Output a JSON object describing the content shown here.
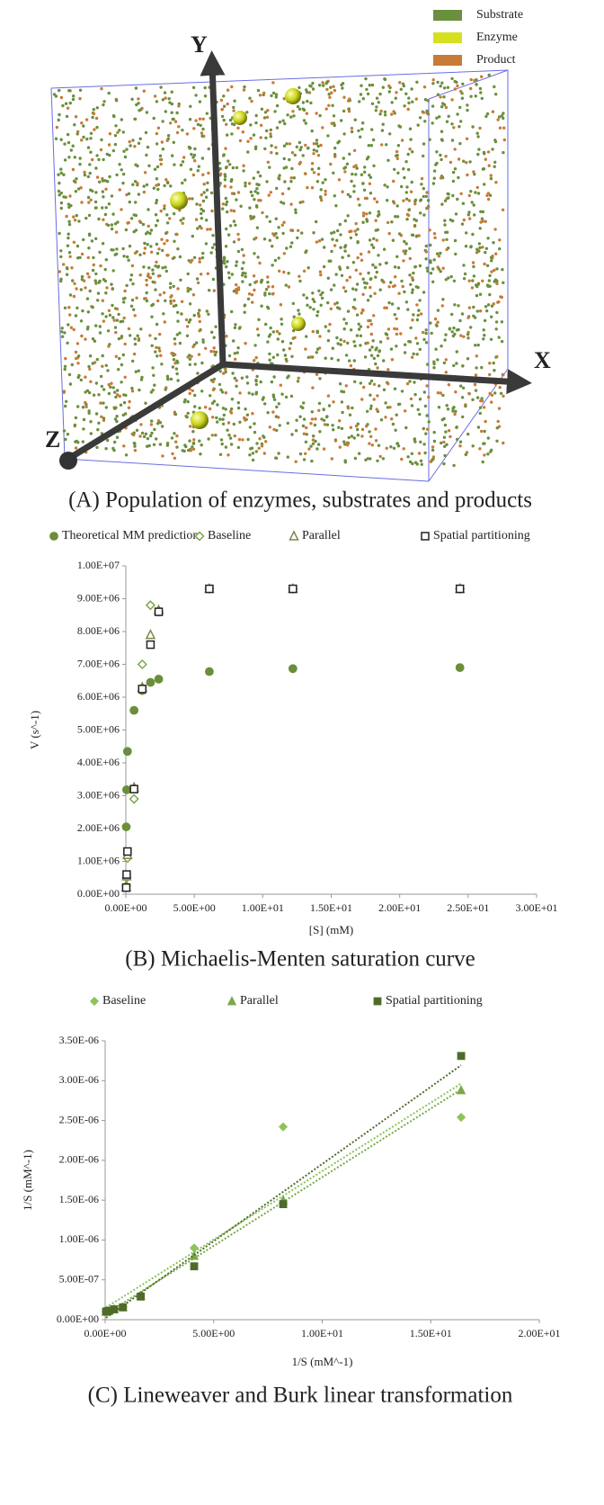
{
  "illustration": {
    "legend": [
      {
        "name": "Substrate",
        "color": "#6a8f3d"
      },
      {
        "name": "Enzyme",
        "color": "#d6e021"
      },
      {
        "name": "Product",
        "color": "#c87a36"
      }
    ],
    "axes": [
      "Y",
      "X",
      "Z"
    ],
    "caption": "(A) Population of enzymes, substrates and products"
  },
  "chart_data": [
    {
      "type": "scatter",
      "caption": "(B) Michaelis-Menten saturation curve",
      "x_label": "[S] (mM)",
      "y_label": "V (s^-1)",
      "x": [
        0.03,
        0.06,
        0.12,
        0.6,
        1.2,
        1.8,
        2.4,
        6.1,
        12.2,
        24.4
      ],
      "series": [
        {
          "name": "Theoretical MM prediction",
          "color": "#6b8e3a",
          "marker": "circle",
          "filled": true,
          "values": [
            2050000,
            3180000,
            4350000,
            5600000,
            6200000,
            6450000,
            6550000,
            6780000,
            6870000,
            6900000
          ]
        },
        {
          "name": "Baseline",
          "color": "#7ba84a",
          "marker": "diamond",
          "filled": false,
          "values": [
            250000,
            500000,
            1100000,
            2900000,
            7000000,
            8800000,
            8600000,
            9300000,
            9300000,
            9300000
          ]
        },
        {
          "name": "Parallel",
          "color": "#7a8a4a",
          "marker": "triangle",
          "filled": false,
          "values": [
            220000,
            550000,
            1200000,
            3250000,
            6300000,
            7900000,
            8650000,
            9300000,
            9300000,
            9300000
          ]
        },
        {
          "name": "Spatial partitioning",
          "color": "#222222",
          "marker": "square",
          "filled": false,
          "values": [
            200000,
            600000,
            1300000,
            3200000,
            6250000,
            7600000,
            8600000,
            9300000,
            9300000,
            9300000
          ]
        }
      ],
      "xlim": [
        0,
        30
      ],
      "xticks": [
        {
          "value": 0,
          "label": "0.00E+00"
        },
        {
          "value": 5,
          "label": "5.00E+00"
        },
        {
          "value": 10,
          "label": "1.00E+01"
        },
        {
          "value": 15,
          "label": "1.50E+01"
        },
        {
          "value": 20,
          "label": "2.00E+01"
        },
        {
          "value": 25,
          "label": "2.50E+01"
        },
        {
          "value": 30,
          "label": "3.00E+01"
        }
      ],
      "ylim": [
        0,
        10000000
      ],
      "yticks": [
        {
          "value": 0,
          "label": "0.00E+00"
        },
        {
          "value": 1000000,
          "label": "1.00E+06"
        },
        {
          "value": 2000000,
          "label": "2.00E+06"
        },
        {
          "value": 3000000,
          "label": "3.00E+06"
        },
        {
          "value": 4000000,
          "label": "4.00E+06"
        },
        {
          "value": 5000000,
          "label": "5.00E+06"
        },
        {
          "value": 6000000,
          "label": "6.00E+06"
        },
        {
          "value": 7000000,
          "label": "7.00E+06"
        },
        {
          "value": 8000000,
          "label": "8.00E+06"
        },
        {
          "value": 9000000,
          "label": "9.00E+06"
        },
        {
          "value": 10000000,
          "label": "1.00E+07"
        }
      ],
      "trendline": false
    },
    {
      "type": "scatter",
      "caption": "(C) Lineweaver and Burk linear transformation",
      "x_label": "1/S (mM^-1)",
      "y_label": "1/S (mM^-1)",
      "x": [
        0.04,
        0.08,
        0.16,
        0.41,
        0.82,
        1.64,
        4.1,
        8.2,
        16.4
      ],
      "series": [
        {
          "name": "Baseline",
          "color": "#8cc35a",
          "marker": "diamond",
          "filled": true,
          "values": [
            1e-07,
            1.05e-07,
            1.15e-07,
            1.35e-07,
            1.6e-07,
            3.1e-07,
            9e-07,
            2.42e-06,
            2.54e-06
          ]
        },
        {
          "name": "Parallel",
          "color": "#7aa84a",
          "marker": "triangle",
          "filled": true,
          "values": [
            1e-07,
            1.05e-07,
            1.1e-07,
            1.3e-07,
            1.55e-07,
            3e-07,
            8e-07,
            1.5e-06,
            2.88e-06
          ]
        },
        {
          "name": "Spatial partitioning",
          "color": "#4f6b2a",
          "marker": "square",
          "filled": true,
          "values": [
            1e-07,
            1.05e-07,
            1.1e-07,
            1.3e-07,
            1.55e-07,
            2.9e-07,
            6.7e-07,
            1.45e-06,
            3.31e-06
          ]
        }
      ],
      "xlim": [
        0,
        20
      ],
      "xticks": [
        {
          "value": 0,
          "label": "0.00E+00"
        },
        {
          "value": 5,
          "label": "5.00E+00"
        },
        {
          "value": 10,
          "label": "1.00E+01"
        },
        {
          "value": 15,
          "label": "1.50E+01"
        },
        {
          "value": 20,
          "label": "2.00E+01"
        }
      ],
      "ylim": [
        0,
        3.5e-06
      ],
      "yticks": [
        {
          "value": 0,
          "label": "0.00E+00"
        },
        {
          "value": 5e-07,
          "label": "5.00E-07"
        },
        {
          "value": 1e-06,
          "label": "1.00E-06"
        },
        {
          "value": 1.5e-06,
          "label": "1.50E-06"
        },
        {
          "value": 2e-06,
          "label": "2.00E-06"
        },
        {
          "value": 2.5e-06,
          "label": "2.50E-06"
        },
        {
          "value": 3e-06,
          "label": "3.00E-06"
        },
        {
          "value": 3.5e-06,
          "label": "3.50E-06"
        }
      ],
      "trendline": true
    }
  ]
}
